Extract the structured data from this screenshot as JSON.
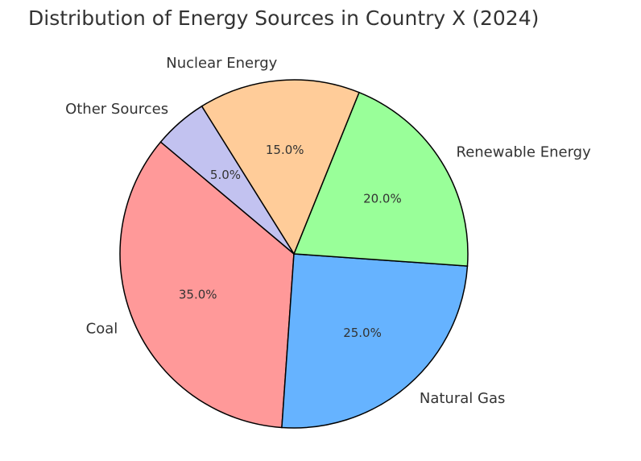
{
  "chart_data": {
    "type": "pie",
    "title": "Distribution of Energy Sources in Country X (2024)",
    "categories": [
      "Coal",
      "Natural Gas",
      "Renewable Energy",
      "Nuclear Energy",
      "Other Sources"
    ],
    "values": [
      35.0,
      25.0,
      20.0,
      15.0,
      5.0
    ],
    "value_labels": [
      "35.0%",
      "25.0%",
      "20.0%",
      "15.0%",
      "5.0%"
    ],
    "colors": [
      "#ff9999",
      "#66b3ff",
      "#99ff99",
      "#ffcc99",
      "#c2c2f0"
    ],
    "start_angle_deg": 140,
    "direction": "counterclockwise",
    "legend": "none"
  }
}
